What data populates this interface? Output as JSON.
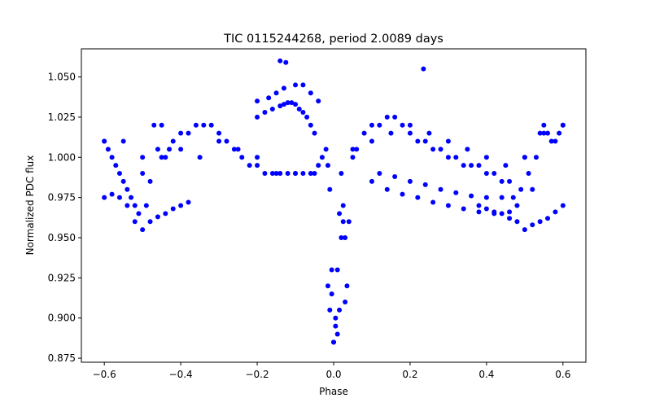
{
  "chart_data": {
    "type": "scatter",
    "title": "TIC 0115244268, period 2.0089 days",
    "xlabel": "Phase",
    "ylabel": "Normalized PDC flux",
    "xlim": [
      -0.66,
      0.66
    ],
    "ylim": [
      0.8725,
      1.0675
    ],
    "grid": false,
    "marker_color": "#0000ff",
    "x_ticks": [
      -0.6,
      -0.4,
      -0.2,
      0.0,
      0.2,
      0.4,
      0.6
    ],
    "x_tick_labels": [
      "−0.6",
      "−0.4",
      "−0.2",
      "0.0",
      "0.2",
      "0.4",
      "0.6"
    ],
    "y_ticks": [
      0.875,
      0.9,
      0.925,
      0.95,
      0.975,
      1.0,
      1.025,
      1.05
    ],
    "y_tick_labels": [
      "0.875",
      "0.900",
      "0.925",
      "0.950",
      "0.975",
      "1.000",
      "1.025",
      "1.050"
    ],
    "series": [
      {
        "name": "flux",
        "x": [
          -0.6,
          -0.59,
          -0.58,
          -0.57,
          -0.56,
          -0.55,
          -0.54,
          -0.53,
          -0.52,
          -0.51,
          -0.5,
          -0.49,
          -0.48,
          -0.47,
          -0.46,
          -0.45,
          -0.44,
          -0.43,
          -0.42,
          -0.4,
          -0.38,
          -0.36,
          -0.34,
          -0.32,
          -0.3,
          -0.28,
          -0.26,
          -0.24,
          -0.22,
          -0.2,
          -0.18,
          -0.16,
          -0.14,
          -0.12,
          -0.1,
          -0.08,
          -0.06,
          -0.04,
          -0.03,
          -0.02,
          -0.015,
          -0.01,
          -0.005,
          0.0,
          0.005,
          0.01,
          0.015,
          0.02,
          0.025,
          0.03,
          0.035,
          0.04,
          0.05,
          0.06,
          0.08,
          0.1,
          0.12,
          0.14,
          0.16,
          0.18,
          0.2,
          0.22,
          0.24,
          0.26,
          0.28,
          0.3,
          0.32,
          0.34,
          0.36,
          0.38,
          0.4,
          0.42,
          0.44,
          0.46,
          0.47,
          0.48,
          0.49,
          0.5,
          0.51,
          0.52,
          0.53,
          0.54,
          0.55,
          0.56,
          0.57,
          0.58,
          0.59,
          0.6,
          -0.6,
          -0.55,
          -0.5,
          -0.45,
          -0.4,
          -0.35,
          -0.3,
          -0.25,
          -0.2,
          -0.15,
          -0.1,
          -0.05,
          0.05,
          0.1,
          0.15,
          0.2,
          0.25,
          0.3,
          0.35,
          0.4,
          0.45,
          0.5,
          0.55,
          0.6,
          -0.2,
          -0.18,
          -0.16,
          -0.14,
          -0.13,
          -0.12,
          -0.11,
          -0.1,
          -0.09,
          -0.08,
          -0.07,
          -0.06,
          -0.05,
          -0.2,
          -0.17,
          -0.15,
          -0.13,
          -0.1,
          -0.08,
          -0.06,
          -0.04,
          -0.14,
          -0.125,
          0.235,
          0.12,
          0.16,
          0.2,
          0.24,
          0.28,
          0.32,
          0.36,
          0.4,
          0.44,
          0.1,
          0.14,
          0.18,
          0.22,
          0.26,
          0.3,
          0.34,
          0.38,
          0.42,
          0.46,
          -0.6,
          -0.58,
          -0.56,
          -0.54,
          -0.52,
          -0.5,
          -0.48,
          -0.46,
          -0.44,
          -0.42,
          -0.4,
          -0.38,
          0.6,
          0.58,
          0.56,
          0.54,
          0.52,
          0.5,
          0.48,
          0.46,
          0.44,
          0.42,
          0.4,
          0.38,
          0.02,
          0.0,
          -0.01,
          0.03,
          0.01,
          0.005,
          -0.005,
          0.015,
          0.025,
          -0.015
        ],
        "y": [
          1.01,
          1.005,
          1.0,
          0.995,
          0.99,
          0.985,
          0.98,
          0.975,
          0.97,
          0.965,
          0.99,
          0.97,
          0.985,
          1.02,
          1.005,
          1.0,
          1.0,
          1.005,
          1.01,
          1.015,
          1.015,
          1.02,
          1.02,
          1.02,
          1.015,
          1.01,
          1.005,
          1.0,
          0.995,
          0.995,
          0.99,
          0.99,
          0.99,
          0.99,
          0.99,
          0.99,
          0.99,
          0.995,
          1.0,
          1.005,
          0.995,
          0.98,
          0.93,
          0.885,
          0.9,
          0.93,
          0.965,
          0.99,
          0.97,
          0.95,
          0.92,
          0.96,
          1.0,
          1.005,
          1.015,
          1.02,
          1.02,
          1.025,
          1.025,
          1.02,
          1.015,
          1.01,
          1.01,
          1.005,
          1.005,
          1.0,
          1.0,
          0.995,
          0.995,
          0.995,
          0.99,
          0.99,
          0.985,
          0.985,
          0.975,
          0.97,
          0.98,
          1.0,
          0.99,
          0.98,
          1.0,
          1.015,
          1.02,
          1.015,
          1.01,
          1.01,
          1.015,
          1.02,
          1.01,
          1.01,
          1.0,
          1.02,
          1.005,
          1.0,
          1.01,
          1.005,
          1.0,
          0.99,
          0.99,
          0.99,
          1.005,
          1.01,
          1.015,
          1.02,
          1.015,
          1.01,
          1.005,
          1.0,
          0.995,
          1.0,
          1.015,
          1.02,
          1.025,
          1.028,
          1.03,
          1.032,
          1.033,
          1.034,
          1.034,
          1.033,
          1.03,
          1.028,
          1.025,
          1.02,
          1.015,
          1.035,
          1.037,
          1.04,
          1.043,
          1.045,
          1.045,
          1.04,
          1.035,
          1.06,
          1.059,
          1.055,
          0.99,
          0.988,
          0.985,
          0.983,
          0.98,
          0.978,
          0.976,
          0.975,
          0.975,
          0.985,
          0.98,
          0.977,
          0.975,
          0.972,
          0.97,
          0.968,
          0.966,
          0.965,
          0.966,
          0.975,
          0.977,
          0.975,
          0.97,
          0.96,
          0.955,
          0.96,
          0.963,
          0.965,
          0.968,
          0.97,
          0.972,
          0.97,
          0.966,
          0.962,
          0.96,
          0.958,
          0.955,
          0.96,
          0.962,
          0.965,
          0.966,
          0.968,
          0.97,
          0.95,
          0.885,
          0.905,
          0.91,
          0.89,
          0.895,
          0.915,
          0.905,
          0.96,
          0.92
        ]
      }
    ]
  }
}
